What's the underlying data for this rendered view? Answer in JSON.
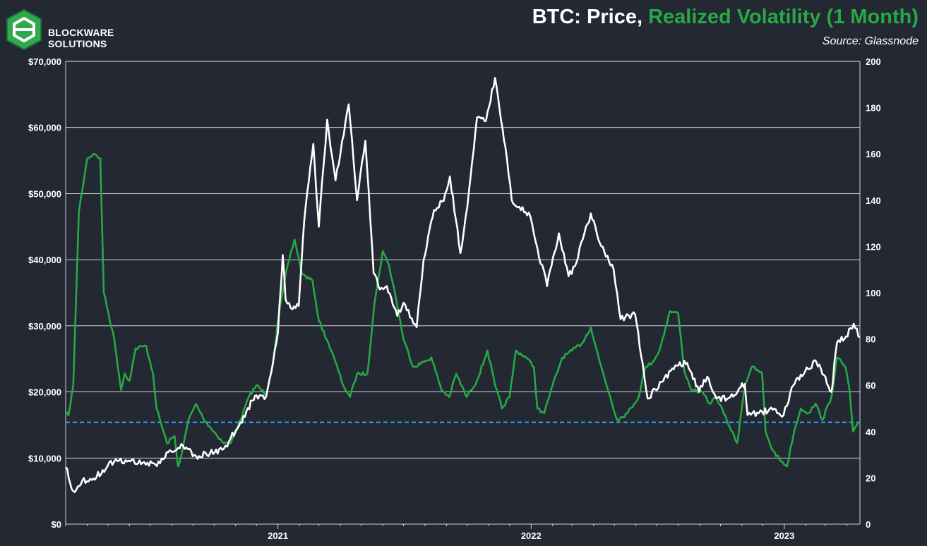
{
  "header": {
    "brand_line1": "BLOCKWARE",
    "brand_line2": "SOLUTIONS",
    "title_part1": "BTC: Price, ",
    "title_part2": "Realized Volatility (1 Month)",
    "source": "Source: Glassnode"
  },
  "colors": {
    "background": "#232833",
    "price": "#ffffff",
    "volatility": "#27a844",
    "threshold": "#2ea8ff",
    "grid": "#ffffff"
  },
  "chart_data": {
    "type": "line",
    "title": "BTC: Price, Realized Volatility (1 Month)",
    "x_range": [
      "2020-03-01",
      "2023-04-20"
    ],
    "x_ticks": [
      {
        "date": "2021-01-01",
        "label": "2021"
      },
      {
        "date": "2022-01-01",
        "label": "2022"
      },
      {
        "date": "2023-01-01",
        "label": "2023"
      }
    ],
    "y_left": {
      "min": 0,
      "max": 70000,
      "ticks": [
        0,
        10000,
        20000,
        30000,
        40000,
        50000,
        60000,
        70000
      ],
      "tick_labels": [
        "$0",
        "$10,000",
        "$20,000",
        "$30,000",
        "$40,000",
        "$50,000",
        "$60,000",
        "$70,000"
      ]
    },
    "y_right": {
      "min": 0,
      "max": 200,
      "ticks": [
        0,
        20,
        40,
        60,
        80,
        100,
        120,
        140,
        160,
        180,
        200
      ],
      "tick_labels": [
        "0",
        "20",
        "40",
        "60",
        "80",
        "100",
        "120",
        "140",
        "160",
        "180",
        "200"
      ]
    },
    "grid": "horizontal",
    "threshold_line": {
      "axis": "right",
      "value": 44,
      "style": "dashed"
    },
    "series": [
      {
        "name": "Price",
        "axis": "left",
        "points": [
          [
            "2020-03-01",
            8600
          ],
          [
            "2020-03-12",
            5000
          ],
          [
            "2020-03-25",
            6600
          ],
          [
            "2020-04-10",
            6900
          ],
          [
            "2020-04-30",
            8700
          ],
          [
            "2020-05-10",
            9500
          ],
          [
            "2020-05-31",
            9600
          ],
          [
            "2020-06-20",
            9300
          ],
          [
            "2020-07-15",
            9200
          ],
          [
            "2020-07-27",
            10900
          ],
          [
            "2020-08-17",
            11900
          ],
          [
            "2020-09-05",
            10300
          ],
          [
            "2020-09-25",
            10700
          ],
          [
            "2020-10-15",
            11400
          ],
          [
            "2020-10-25",
            13000
          ],
          [
            "2020-11-08",
            15400
          ],
          [
            "2020-11-25",
            18700
          ],
          [
            "2020-12-01",
            19500
          ],
          [
            "2020-12-15",
            19300
          ],
          [
            "2020-12-25",
            24500
          ],
          [
            "2021-01-01",
            29000
          ],
          [
            "2021-01-08",
            40700
          ],
          [
            "2021-01-12",
            34000
          ],
          [
            "2021-01-22",
            32500
          ],
          [
            "2021-01-31",
            33000
          ],
          [
            "2021-02-08",
            46000
          ],
          [
            "2021-02-21",
            57500
          ],
          [
            "2021-03-01",
            45000
          ],
          [
            "2021-03-13",
            61200
          ],
          [
            "2021-03-25",
            52000
          ],
          [
            "2021-04-13",
            63500
          ],
          [
            "2021-04-25",
            49000
          ],
          [
            "2021-05-07",
            58000
          ],
          [
            "2021-05-19",
            38000
          ],
          [
            "2021-05-28",
            35500
          ],
          [
            "2021-06-07",
            36000
          ],
          [
            "2021-06-22",
            31500
          ],
          [
            "2021-07-01",
            33500
          ],
          [
            "2021-07-20",
            29800
          ],
          [
            "2021-07-30",
            40000
          ],
          [
            "2021-08-14",
            47500
          ],
          [
            "2021-08-28",
            48900
          ],
          [
            "2021-09-06",
            52600
          ],
          [
            "2021-09-21",
            41000
          ],
          [
            "2021-10-01",
            48000
          ],
          [
            "2021-10-15",
            61500
          ],
          [
            "2021-10-28",
            61000
          ],
          [
            "2021-11-10",
            67500
          ],
          [
            "2021-11-25",
            57000
          ],
          [
            "2021-12-04",
            49000
          ],
          [
            "2021-12-15",
            48000
          ],
          [
            "2021-12-31",
            46500
          ],
          [
            "2022-01-10",
            41800
          ],
          [
            "2022-01-24",
            36000
          ],
          [
            "2022-02-10",
            44000
          ],
          [
            "2022-02-24",
            37500
          ],
          [
            "2022-03-05",
            39000
          ],
          [
            "2022-03-28",
            47000
          ],
          [
            "2022-04-10",
            42500
          ],
          [
            "2022-04-30",
            38500
          ],
          [
            "2022-05-10",
            31000
          ],
          [
            "2022-05-31",
            31700
          ],
          [
            "2022-06-13",
            22500
          ],
          [
            "2022-06-18",
            19000
          ],
          [
            "2022-07-08",
            21500
          ],
          [
            "2022-07-30",
            24000
          ],
          [
            "2022-08-14",
            24400
          ],
          [
            "2022-08-31",
            20000
          ],
          [
            "2022-09-12",
            22300
          ],
          [
            "2022-09-25",
            19000
          ],
          [
            "2022-10-15",
            19200
          ],
          [
            "2022-10-30",
            20700
          ],
          [
            "2022-11-05",
            21200
          ],
          [
            "2022-11-09",
            16500
          ],
          [
            "2022-11-30",
            17000
          ],
          [
            "2022-12-15",
            17300
          ],
          [
            "2022-12-31",
            16500
          ],
          [
            "2023-01-14",
            21000
          ],
          [
            "2023-01-31",
            23100
          ],
          [
            "2023-02-16",
            24600
          ],
          [
            "2023-03-10",
            20000
          ],
          [
            "2023-03-18",
            27500
          ],
          [
            "2023-03-31",
            28400
          ],
          [
            "2023-04-11",
            30300
          ],
          [
            "2023-04-20",
            28300
          ]
        ]
      },
      {
        "name": "Realized Volatility (1 Month)",
        "axis": "right",
        "points": [
          [
            "2020-03-01",
            48
          ],
          [
            "2020-03-05",
            47
          ],
          [
            "2020-03-12",
            60
          ],
          [
            "2020-03-20",
            135
          ],
          [
            "2020-04-01",
            158
          ],
          [
            "2020-04-10",
            160
          ],
          [
            "2020-04-20",
            158
          ],
          [
            "2020-04-25",
            100
          ],
          [
            "2020-05-10",
            80
          ],
          [
            "2020-05-20",
            58
          ],
          [
            "2020-05-25",
            65
          ],
          [
            "2020-06-01",
            62
          ],
          [
            "2020-06-10",
            76
          ],
          [
            "2020-06-25",
            77
          ],
          [
            "2020-07-05",
            65
          ],
          [
            "2020-07-10",
            50
          ],
          [
            "2020-07-25",
            35
          ],
          [
            "2020-08-05",
            38
          ],
          [
            "2020-08-10",
            25
          ],
          [
            "2020-08-15",
            30
          ],
          [
            "2020-08-25",
            45
          ],
          [
            "2020-09-05",
            52
          ],
          [
            "2020-09-15",
            46
          ],
          [
            "2020-09-25",
            42
          ],
          [
            "2020-10-15",
            35
          ],
          [
            "2020-10-25",
            35
          ],
          [
            "2020-11-08",
            45
          ],
          [
            "2020-11-20",
            55
          ],
          [
            "2020-12-01",
            60
          ],
          [
            "2020-12-15",
            56
          ],
          [
            "2020-12-25",
            70
          ],
          [
            "2021-01-01",
            88
          ],
          [
            "2021-01-15",
            112
          ],
          [
            "2021-01-25",
            123
          ],
          [
            "2021-02-05",
            108
          ],
          [
            "2021-02-20",
            105
          ],
          [
            "2021-03-01",
            88
          ],
          [
            "2021-03-15",
            78
          ],
          [
            "2021-03-25",
            70
          ],
          [
            "2021-04-05",
            60
          ],
          [
            "2021-04-15",
            55
          ],
          [
            "2021-04-25",
            65
          ],
          [
            "2021-05-10",
            65
          ],
          [
            "2021-05-20",
            95
          ],
          [
            "2021-06-01",
            118
          ],
          [
            "2021-06-10",
            112
          ],
          [
            "2021-06-20",
            98
          ],
          [
            "2021-07-01",
            80
          ],
          [
            "2021-07-15",
            68
          ],
          [
            "2021-07-30",
            70
          ],
          [
            "2021-08-10",
            72
          ],
          [
            "2021-08-25",
            58
          ],
          [
            "2021-09-05",
            55
          ],
          [
            "2021-09-15",
            65
          ],
          [
            "2021-09-30",
            55
          ],
          [
            "2021-10-15",
            62
          ],
          [
            "2021-10-30",
            75
          ],
          [
            "2021-11-10",
            60
          ],
          [
            "2021-11-20",
            50
          ],
          [
            "2021-12-01",
            55
          ],
          [
            "2021-12-10",
            75
          ],
          [
            "2021-12-25",
            72
          ],
          [
            "2022-01-05",
            68
          ],
          [
            "2022-01-10",
            50
          ],
          [
            "2022-01-20",
            48
          ],
          [
            "2022-02-01",
            60
          ],
          [
            "2022-02-15",
            72
          ],
          [
            "2022-03-01",
            75
          ],
          [
            "2022-03-15",
            78
          ],
          [
            "2022-03-28",
            85
          ],
          [
            "2022-04-10",
            70
          ],
          [
            "2022-04-25",
            55
          ],
          [
            "2022-05-05",
            45
          ],
          [
            "2022-05-20",
            48
          ],
          [
            "2022-06-05",
            55
          ],
          [
            "2022-06-15",
            68
          ],
          [
            "2022-06-25",
            70
          ],
          [
            "2022-07-05",
            75
          ],
          [
            "2022-07-20",
            92
          ],
          [
            "2022-08-01",
            91
          ],
          [
            "2022-08-10",
            66
          ],
          [
            "2022-08-20",
            58
          ],
          [
            "2022-09-05",
            57
          ],
          [
            "2022-09-15",
            52
          ],
          [
            "2022-09-25",
            55
          ],
          [
            "2022-10-10",
            45
          ],
          [
            "2022-10-25",
            35
          ],
          [
            "2022-11-05",
            60
          ],
          [
            "2022-11-15",
            68
          ],
          [
            "2022-11-30",
            65
          ],
          [
            "2022-12-05",
            40
          ],
          [
            "2022-12-15",
            32
          ],
          [
            "2022-12-25",
            28
          ],
          [
            "2023-01-05",
            25
          ],
          [
            "2023-01-15",
            40
          ],
          [
            "2023-01-25",
            50
          ],
          [
            "2023-02-05",
            48
          ],
          [
            "2023-02-15",
            52
          ],
          [
            "2023-02-25",
            45
          ],
          [
            "2023-03-10",
            55
          ],
          [
            "2023-03-18",
            72
          ],
          [
            "2023-03-30",
            68
          ],
          [
            "2023-04-05",
            58
          ],
          [
            "2023-04-10",
            40
          ],
          [
            "2023-04-20",
            44
          ]
        ]
      }
    ]
  }
}
